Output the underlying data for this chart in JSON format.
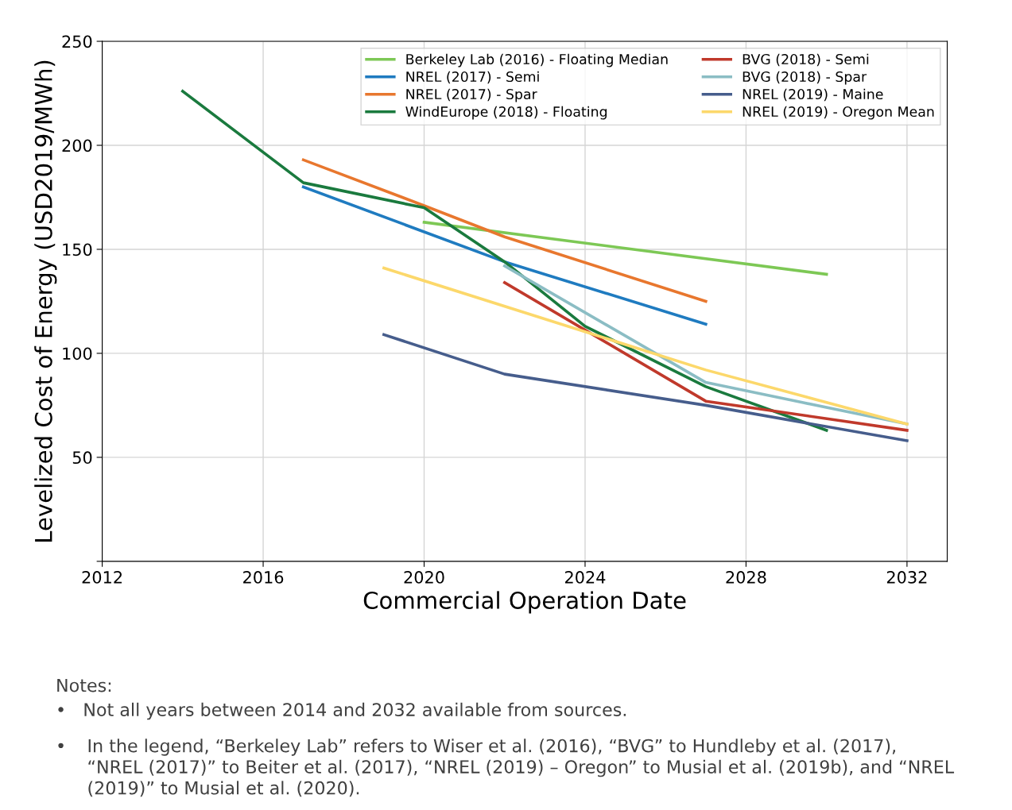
{
  "chart_data": {
    "type": "line",
    "xlabel": "Commercial Operation Date",
    "ylabel": "Levelized Cost of Energy (USD2019/MWh)",
    "xlim": [
      2012,
      2033
    ],
    "xticks": [
      2012,
      2016,
      2020,
      2024,
      2028,
      2032
    ],
    "ylim": [
      0,
      250
    ],
    "yticks": [
      {
        "value": 0,
        "label": null
      },
      50,
      100,
      150,
      200,
      250
    ],
    "grid": true,
    "legend": "top right",
    "line_style": "solid",
    "marker": "none",
    "series": [
      {
        "name": "Berkeley Lab (2016) - Floating Median",
        "color": "#7dc855",
        "x": [
          2020,
          2030
        ],
        "values": [
          163,
          138
        ]
      },
      {
        "name": "NREL (2017) - Semi",
        "color": "#1f7bc0",
        "x": [
          2017,
          2022,
          2027
        ],
        "values": [
          180,
          144,
          114
        ]
      },
      {
        "name": "NREL (2017) - Spar",
        "color": "#e8772e",
        "x": [
          2017,
          2020,
          2022,
          2027
        ],
        "values": [
          193,
          171,
          156,
          125
        ]
      },
      {
        "name": "WindEurope (2018) - Floating",
        "color": "#1a7a3e",
        "x": [
          2014,
          2017,
          2020,
          2022,
          2024,
          2027,
          2030
        ],
        "values": [
          226,
          182,
          170,
          144,
          113,
          84,
          63
        ]
      },
      {
        "name": "BVG (2018) - Semi",
        "color": "#c0392b",
        "x": [
          2022,
          2027,
          2032
        ],
        "values": [
          134,
          77,
          63
        ]
      },
      {
        "name": "BVG (2018) - Spar",
        "color": "#8bbdc4",
        "x": [
          2022,
          2027,
          2032
        ],
        "values": [
          142,
          86,
          66
        ]
      },
      {
        "name": "NREL (2019) - Maine",
        "color": "#465d8c",
        "x": [
          2019,
          2022,
          2027,
          2032
        ],
        "values": [
          109,
          90,
          75,
          58
        ]
      },
      {
        "name": "NREL (2019) - Oregon Mean",
        "color": "#fcd86b",
        "x": [
          2019,
          2027,
          2032
        ],
        "values": [
          141,
          92,
          66
        ]
      }
    ],
    "annotations": [
      "Notes:",
      "•   Not all years between 2014 and 2032 available from sources.",
      "•   In the legend, “Berkeley Lab” refers to Wiser et al. (2016), “BVG” to Hundleby et al. (2017), “NREL (2017)” to Beiter et al. (2017), “NREL (2019) – Oregon” to Musial et al. (2019b), and “NREL (2019)” to Musial et al. (2020)."
    ]
  }
}
